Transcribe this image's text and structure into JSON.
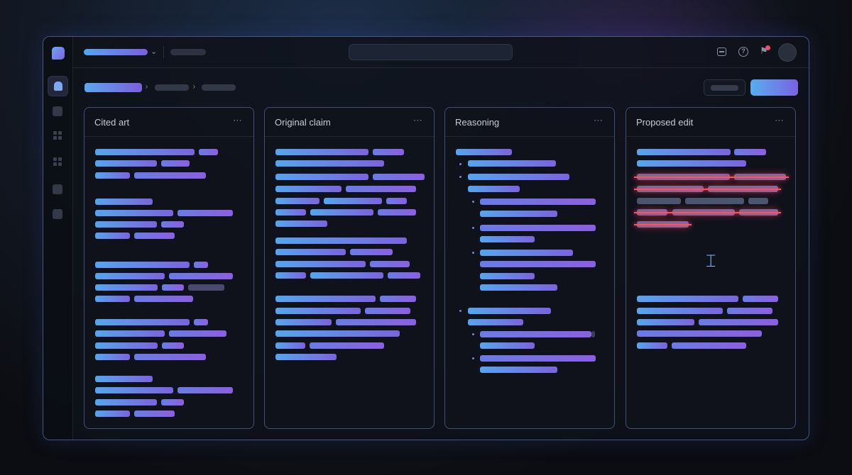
{
  "panels": [
    {
      "title": "Cited art",
      "more": "⋯"
    },
    {
      "title": "Original claim",
      "more": "⋯"
    },
    {
      "title": "Reasoning",
      "more": "⋯"
    },
    {
      "title": "Proposed edit",
      "more": "⋯"
    }
  ],
  "icons": {
    "dropdown": "⌄",
    "breadcrumb_separator": "›",
    "help": "?",
    "bell": "🔔",
    "text_cursor": "⌶"
  },
  "colors": {
    "accent_start": "#55a5ee",
    "accent_end": "#7b63e0",
    "deletion": "#ff4f6a",
    "notification": "#ef4e63"
  }
}
